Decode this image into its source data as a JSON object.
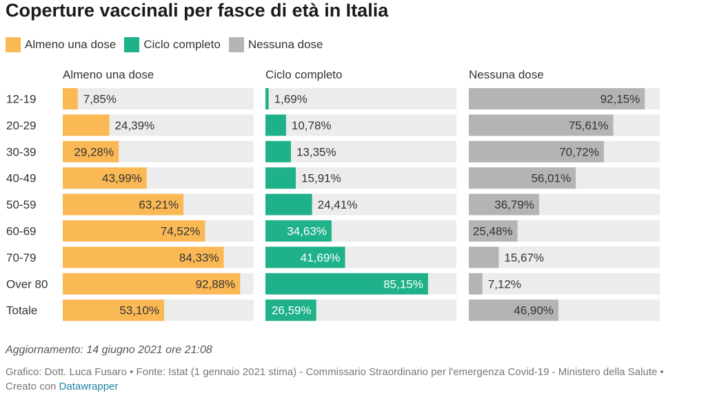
{
  "title": "Coperture vaccinali per fasce di età in Italia",
  "chart_data": {
    "type": "bar",
    "orientation": "horizontal",
    "categories": [
      "12-19",
      "20-29",
      "30-39",
      "40-49",
      "50-59",
      "60-69",
      "70-79",
      "Over 80",
      "Totale"
    ],
    "value_labels": [
      [
        "7,85%",
        "24,39%",
        "29,28%",
        "43,99%",
        "63,21%",
        "74,52%",
        "84,33%",
        "92,88%",
        "53,10%"
      ],
      [
        "1,69%",
        "10,78%",
        "13,35%",
        "15,91%",
        "24,41%",
        "34,63%",
        "41,69%",
        "85,15%",
        "26,59%"
      ],
      [
        "92,15%",
        "75,61%",
        "70,72%",
        "56,01%",
        "36,79%",
        "25,48%",
        "15,67%",
        "7,12%",
        "46,90%"
      ]
    ],
    "series": [
      {
        "name": "Almeno una dose",
        "color": "#fbb955",
        "values": [
          7.85,
          24.39,
          29.28,
          43.99,
          63.21,
          74.52,
          84.33,
          92.88,
          53.1
        ]
      },
      {
        "name": "Ciclo completo",
        "color": "#1fb28a",
        "values": [
          1.69,
          10.78,
          13.35,
          15.91,
          24.41,
          34.63,
          41.69,
          85.15,
          26.59
        ]
      },
      {
        "name": "Nessuna dose",
        "color": "#b4b4b4",
        "values": [
          92.15,
          75.61,
          70.72,
          56.01,
          36.79,
          25.48,
          15.67,
          7.12,
          46.9
        ]
      }
    ],
    "xlim": [
      0,
      100
    ],
    "track_color": "#ececec",
    "legend_position": "top-left"
  },
  "legend": [
    {
      "label": "Almeno una dose",
      "color": "#fbb955"
    },
    {
      "label": "Ciclo completo",
      "color": "#1fb28a"
    },
    {
      "label": "Nessuna dose",
      "color": "#b4b4b4"
    }
  ],
  "footer": {
    "update": "Aggiornamento: 14 giugno 2021 ore 21:08",
    "credits": "Grafico: Dott. Luca Fusaro • Fonte: Istat (1 gennaio 2021 stima) - Commissario Straordinario per l'emergenza Covid-19 - Ministero della Salute • Creato con ",
    "link_label": "Datawrapper"
  }
}
